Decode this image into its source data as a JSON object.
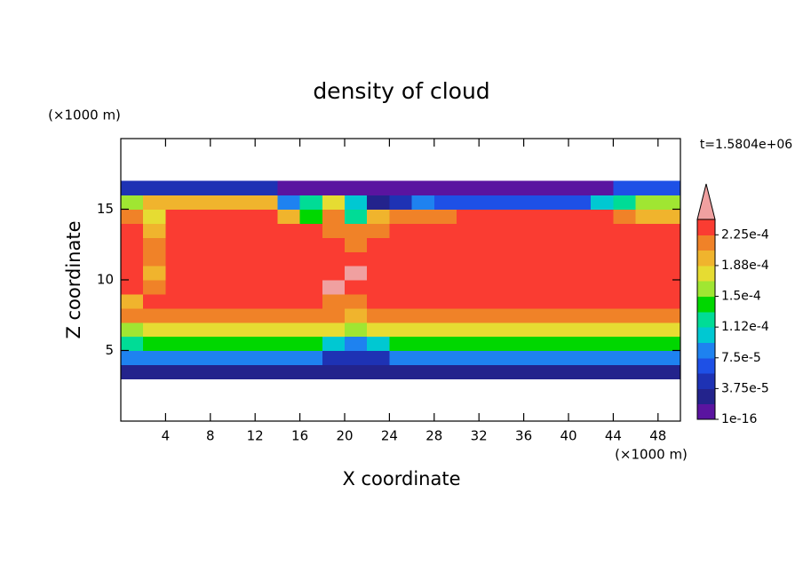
{
  "chart_data": {
    "type": "contour",
    "title": "density of cloud",
    "x_label": "X coordinate",
    "y_label": "Z coordinate",
    "unit_label": "(×1000 m)",
    "annotation": "t=1.5804e+06",
    "xlim": [
      0,
      50
    ],
    "ylim": [
      0,
      20
    ],
    "xticks": [
      4,
      8,
      12,
      16,
      20,
      24,
      28,
      32,
      36,
      40,
      44,
      48
    ],
    "yticks": [
      5,
      10,
      15
    ],
    "x": [
      1,
      3,
      5,
      7,
      9,
      11,
      13,
      15,
      17,
      19,
      21,
      23,
      25,
      27,
      29,
      31,
      33,
      35,
      37,
      39,
      41,
      43,
      45,
      47,
      49
    ],
    "y": [
      3.5,
      4.5,
      5.5,
      6.5,
      7.5,
      8.5,
      9.5,
      10.5,
      11.5,
      12.5,
      13.5,
      14.5,
      15.5,
      16.5
    ],
    "values": [
      [
        2e-05,
        2e-05,
        2e-05,
        2e-05,
        2e-05,
        2e-05,
        2e-05,
        2e-05,
        2e-05,
        3e-05,
        3e-05,
        3e-05,
        2e-05,
        2e-05,
        2e-05,
        2e-05,
        2e-05,
        2e-05,
        2e-05,
        2e-05,
        2e-05,
        2e-05,
        2e-05,
        2e-05,
        2e-05
      ],
      [
        8.5e-05,
        8.5e-05,
        8.5e-05,
        8.5e-05,
        8.5e-05,
        8.5e-05,
        8.5e-05,
        8.5e-05,
        8.5e-05,
        4.5e-05,
        4.5e-05,
        4.5e-05,
        8.5e-05,
        8.5e-05,
        8.5e-05,
        8.5e-05,
        8.5e-05,
        8.5e-05,
        8.5e-05,
        8.5e-05,
        8.5e-05,
        8.5e-05,
        8.5e-05,
        8.5e-05,
        8.5e-05
      ],
      [
        0.00012,
        0.000145,
        0.000145,
        0.000145,
        0.000145,
        0.000145,
        0.000145,
        0.000145,
        0.000145,
        0.0001,
        9e-05,
        0.0001,
        0.000145,
        0.000145,
        0.000145,
        0.000145,
        0.000145,
        0.000145,
        0.000145,
        0.000145,
        0.000145,
        0.000145,
        0.000145,
        0.000145,
        0.000145
      ],
      [
        0.00016,
        0.000185,
        0.000185,
        0.000185,
        0.000185,
        0.000185,
        0.000185,
        0.000185,
        0.000185,
        0.000185,
        0.00016,
        0.000185,
        0.000185,
        0.000185,
        0.000185,
        0.000185,
        0.000185,
        0.000185,
        0.000185,
        0.000185,
        0.000185,
        0.000185,
        0.000185,
        0.000185,
        0.000185
      ],
      [
        0.00021,
        0.00021,
        0.00021,
        0.00021,
        0.00021,
        0.00021,
        0.00021,
        0.00021,
        0.00021,
        0.00021,
        0.000195,
        0.00021,
        0.00021,
        0.00021,
        0.00021,
        0.00021,
        0.00021,
        0.00021,
        0.00021,
        0.00021,
        0.00021,
        0.00021,
        0.00021,
        0.00021,
        0.00021
      ],
      [
        0.0002,
        0.000225,
        0.000225,
        0.000225,
        0.000225,
        0.000225,
        0.000225,
        0.000225,
        0.000225,
        0.000215,
        0.000215,
        0.000225,
        0.000225,
        0.000225,
        0.000225,
        0.000225,
        0.000225,
        0.000225,
        0.000225,
        0.000225,
        0.000225,
        0.000225,
        0.000225,
        0.000225,
        0.000225
      ],
      [
        0.000235,
        0.000215,
        0.000235,
        0.000235,
        0.000235,
        0.000235,
        0.000235,
        0.000235,
        0.000235,
        0.000245,
        0.000235,
        0.000235,
        0.000235,
        0.000235,
        0.000235,
        0.000235,
        0.000235,
        0.000235,
        0.000235,
        0.000235,
        0.000235,
        0.000235,
        0.000235,
        0.000235,
        0.000235
      ],
      [
        0.000235,
        0.0002,
        0.000235,
        0.000235,
        0.000235,
        0.000235,
        0.000235,
        0.000235,
        0.000235,
        0.000235,
        0.00025,
        0.000235,
        0.000235,
        0.000235,
        0.000235,
        0.000235,
        0.000235,
        0.000235,
        0.000235,
        0.000235,
        0.000235,
        0.000235,
        0.000235,
        0.000235,
        0.000235
      ],
      [
        0.000235,
        0.00022,
        0.000235,
        0.000235,
        0.000235,
        0.000235,
        0.000235,
        0.000235,
        0.000235,
        0.000235,
        0.000235,
        0.000235,
        0.000235,
        0.000235,
        0.000235,
        0.000235,
        0.000235,
        0.000235,
        0.000235,
        0.000235,
        0.000235,
        0.000235,
        0.000235,
        0.000235,
        0.000235
      ],
      [
        0.000235,
        0.00021,
        0.000235,
        0.000235,
        0.000235,
        0.000235,
        0.000235,
        0.000235,
        0.000235,
        0.000235,
        0.00022,
        0.000235,
        0.000235,
        0.000235,
        0.000235,
        0.000235,
        0.000235,
        0.000235,
        0.000235,
        0.000235,
        0.000235,
        0.000235,
        0.000235,
        0.000235,
        0.000235
      ],
      [
        0.000235,
        0.0002,
        0.000235,
        0.000235,
        0.000235,
        0.000235,
        0.000235,
        0.000235,
        0.000235,
        0.00022,
        0.00022,
        0.00022,
        0.000235,
        0.000235,
        0.000235,
        0.000235,
        0.000235,
        0.000235,
        0.000235,
        0.000235,
        0.000235,
        0.000235,
        0.000235,
        0.000235,
        0.000235
      ],
      [
        0.00021,
        0.00017,
        0.00023,
        0.00023,
        0.00023,
        0.00023,
        0.00023,
        0.00019,
        0.00014,
        0.00021,
        0.00012,
        0.00019,
        0.00021,
        0.00021,
        0.00021,
        0.00023,
        0.00023,
        0.00023,
        0.00023,
        0.00023,
        0.00023,
        0.00023,
        0.00021,
        0.00019,
        0.00019
      ],
      [
        0.00016,
        0.00019,
        0.000195,
        0.000195,
        0.000195,
        0.000195,
        0.000195,
        8e-05,
        0.00013,
        0.00017,
        0.0001,
        3e-05,
        5e-05,
        9e-05,
        7e-05,
        7e-05,
        7e-05,
        6e-05,
        6e-05,
        6e-05,
        6e-05,
        0.0001,
        0.00013,
        0.00016,
        0.00016
      ],
      [
        4e-05,
        4e-05,
        4e-05,
        4e-05,
        4e-05,
        4e-05,
        4e-05,
        1e-05,
        1e-05,
        1e-05,
        1e-05,
        1e-05,
        1e-05,
        1e-05,
        1e-05,
        1e-05,
        1e-05,
        1e-05,
        1e-05,
        1e-05,
        1e-05,
        1e-05,
        6e-05,
        6e-05,
        6e-05
      ]
    ],
    "levels": [
      1e-16,
      1.875e-05,
      3.75e-05,
      5.625e-05,
      7.5e-05,
      9.375e-05,
      0.0001125,
      0.00013125,
      0.00015,
      0.00016875,
      0.0001875,
      0.00020625,
      0.000225,
      0.00024375
    ],
    "colors": [
      "#5a14a0",
      "#23238c",
      "#1e32b4",
      "#1e50e6",
      "#1e82f0",
      "#00c8d2",
      "#00dc96",
      "#00d700",
      "#a0e632",
      "#e6dc32",
      "#f0b42d",
      "#f08228",
      "#fa3c32"
    ],
    "over_color": "#f0a0a0",
    "colorbar_ticks": [
      1e-16,
      {
        "value": 3.75e-05,
        "label": "3.75e-5"
      },
      {
        "value": 7.5e-05,
        "label": "7.5e-5"
      },
      {
        "value": 0.0001125,
        "label": "1.12e-4"
      },
      {
        "value": 0.00015,
        "label": "1.5e-4"
      },
      {
        "value": 0.0001875,
        "label": "1.88e-4"
      },
      {
        "value": 0.000225,
        "label": "2.25e-4"
      }
    ]
  }
}
